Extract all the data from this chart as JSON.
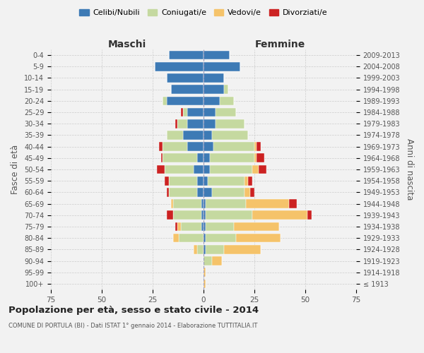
{
  "age_groups": [
    "100+",
    "95-99",
    "90-94",
    "85-89",
    "80-84",
    "75-79",
    "70-74",
    "65-69",
    "60-64",
    "55-59",
    "50-54",
    "45-49",
    "40-44",
    "35-39",
    "30-34",
    "25-29",
    "20-24",
    "15-19",
    "10-14",
    "5-9",
    "0-4"
  ],
  "birth_years": [
    "≤ 1913",
    "1914-1918",
    "1919-1923",
    "1924-1928",
    "1929-1933",
    "1934-1938",
    "1939-1943",
    "1944-1948",
    "1949-1953",
    "1954-1958",
    "1959-1963",
    "1964-1968",
    "1969-1973",
    "1974-1978",
    "1979-1983",
    "1984-1988",
    "1989-1993",
    "1994-1998",
    "1999-2003",
    "2004-2008",
    "2009-2013"
  ],
  "males": {
    "celibi": [
      0,
      0,
      0,
      0,
      0,
      1,
      1,
      1,
      3,
      3,
      5,
      3,
      8,
      10,
      8,
      8,
      18,
      16,
      18,
      24,
      17
    ],
    "coniugati": [
      0,
      0,
      0,
      3,
      12,
      10,
      14,
      14,
      14,
      14,
      14,
      17,
      12,
      8,
      5,
      2,
      2,
      0,
      0,
      0,
      0
    ],
    "vedovi": [
      0,
      0,
      0,
      2,
      3,
      2,
      0,
      1,
      0,
      0,
      0,
      0,
      0,
      0,
      0,
      0,
      0,
      0,
      0,
      0,
      0
    ],
    "divorziati": [
      0,
      0,
      0,
      0,
      0,
      1,
      3,
      0,
      1,
      2,
      4,
      1,
      2,
      0,
      1,
      1,
      0,
      0,
      0,
      0,
      0
    ]
  },
  "females": {
    "nubili": [
      0,
      0,
      0,
      1,
      1,
      1,
      1,
      1,
      4,
      2,
      3,
      3,
      5,
      4,
      6,
      6,
      8,
      10,
      10,
      18,
      13
    ],
    "coniugate": [
      0,
      0,
      4,
      9,
      15,
      14,
      23,
      20,
      16,
      18,
      21,
      22,
      20,
      18,
      14,
      10,
      7,
      2,
      0,
      0,
      0
    ],
    "vedove": [
      1,
      1,
      5,
      18,
      22,
      22,
      27,
      21,
      3,
      2,
      3,
      1,
      1,
      0,
      0,
      0,
      0,
      0,
      0,
      0,
      0
    ],
    "divorziate": [
      0,
      0,
      0,
      0,
      0,
      0,
      2,
      4,
      2,
      2,
      4,
      4,
      2,
      0,
      0,
      0,
      0,
      0,
      0,
      0,
      0
    ]
  },
  "colors": {
    "celibi": "#3d7ab5",
    "coniugati": "#c5d9a0",
    "vedovi": "#f5c36a",
    "divorziati": "#cc2222"
  },
  "title": "Popolazione per età, sesso e stato civile - 2014",
  "subtitle": "COMUNE DI PORTULA (BI) - Dati ISTAT 1° gennaio 2014 - Elaborazione TUTTITALIA.IT",
  "xlabel_left": "Maschi",
  "xlabel_right": "Femmine",
  "ylabel_left": "Fasce di età",
  "ylabel_right": "Anni di nascita",
  "xlim": 75,
  "bg_color": "#f2f2f2"
}
